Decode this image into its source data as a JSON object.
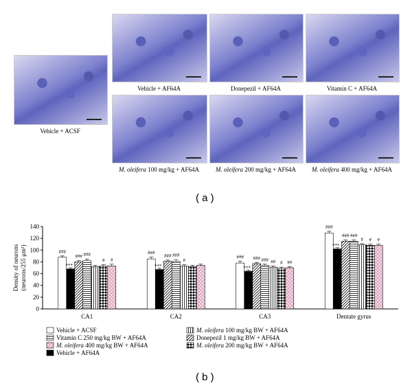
{
  "panel_a": {
    "label": "( a )",
    "images": [
      {
        "caption": "Vehicle + ACSF"
      },
      {
        "caption": "Vehicle + AF64A"
      },
      {
        "caption": "Donepezil + AF64A"
      },
      {
        "caption": "Vitamin C + AF64A"
      },
      {
        "species": "M. oleifera",
        "caption": "100 mg/kg + AF64A"
      },
      {
        "species": "M. oleifera",
        "caption": "200 mg/kg + AF64A"
      },
      {
        "species": "M. oleifera",
        "caption": "400 mg/kg + AF64A"
      }
    ]
  },
  "panel_b": {
    "label": "( b )"
  },
  "chart_data": {
    "type": "bar",
    "ylabel": [
      "Density of neurons",
      "(neurons/255 μm²)"
    ],
    "categories": [
      "CA1",
      "CA2",
      "CA3",
      "Dentate gyrus"
    ],
    "ylim": [
      0,
      140
    ],
    "yticks": [
      0,
      20,
      40,
      60,
      80,
      100,
      120,
      140
    ],
    "series": [
      {
        "name": "Vehicle + ACSF",
        "color": "#ffffff",
        "pattern": "none",
        "values": [
          88,
          85,
          78,
          129
        ],
        "errors": [
          2,
          3,
          3,
          3
        ],
        "significance": [
          "###",
          "###",
          "###",
          "###"
        ]
      },
      {
        "name": "Vehicle + AF64A",
        "color": "#000000",
        "pattern": "solid",
        "values": [
          68,
          67,
          64,
          102
        ],
        "errors": [
          2,
          2,
          2,
          2
        ],
        "significance": [
          "***",
          "***",
          "***",
          "***"
        ]
      },
      {
        "name": "Donepezil 1 mg/kg BW + AF64A",
        "color": "#000000",
        "pattern": "diagonal",
        "values": [
          80,
          81,
          77,
          115
        ],
        "errors": [
          2,
          2,
          2,
          2
        ],
        "significance": [
          "###",
          "###",
          "###",
          "###"
        ]
      },
      {
        "name": "Vitamin C 250 mg/kg BW + AF64A",
        "color": "#000000",
        "pattern": "horizontal",
        "values": [
          82,
          81,
          74,
          115
        ],
        "errors": [
          3,
          3,
          2,
          2
        ],
        "significance": [
          "###",
          "###",
          "###",
          "###"
        ]
      },
      {
        "species": "M. oleifera",
        "name": "100 mg/kg BW + AF64A",
        "color": "#000000",
        "pattern": "vertical",
        "values": [
          72,
          73,
          71,
          109
        ],
        "errors": [
          2,
          2,
          2,
          2
        ],
        "significance": [
          null,
          "#",
          "##",
          "#"
        ]
      },
      {
        "species": "M. oleifera",
        "name": "200 mg/kg BW + AF64A",
        "color": "#000000",
        "pattern": "checker",
        "values": [
          73,
          72,
          69,
          108
        ],
        "errors": [
          2,
          2,
          2,
          2
        ],
        "significance": [
          "#",
          null,
          "#",
          "#"
        ]
      },
      {
        "species": "M. oleifera",
        "name": "400 mg/kg BW + AF64A",
        "color": "#d98fb0",
        "pattern": "crosshatch",
        "values": [
          73,
          74,
          70,
          108
        ],
        "errors": [
          3,
          2,
          2,
          2
        ],
        "significance": [
          "#",
          null,
          "##",
          "#"
        ]
      }
    ],
    "legend_order": [
      0,
      3,
      6,
      1,
      4,
      2,
      5
    ]
  }
}
